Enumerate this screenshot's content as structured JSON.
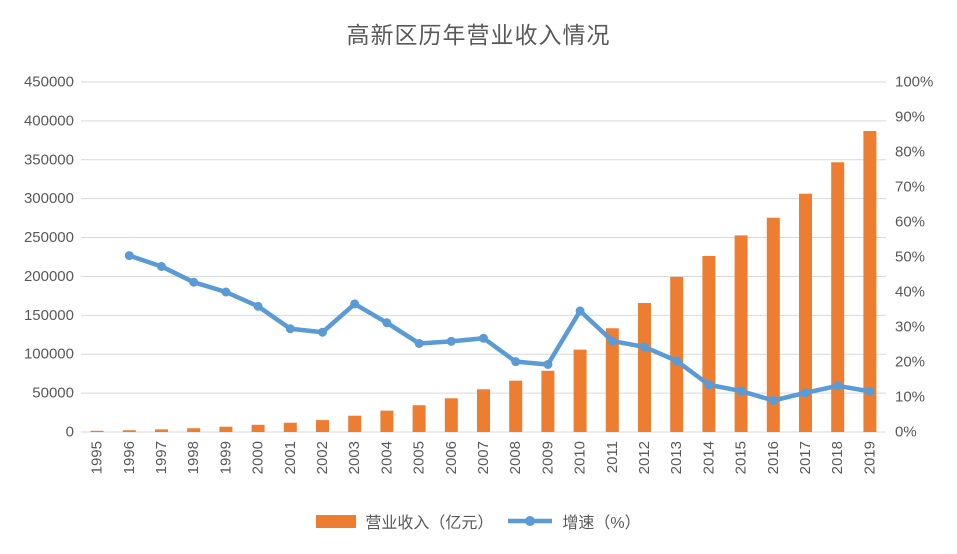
{
  "title": "高新区历年营业收入情况",
  "colors": {
    "bar": "#ED7D31",
    "line": "#5B9BD5",
    "grid": "#D9D9D9",
    "axis_text": "#595959",
    "title_text": "#595959",
    "background": "#FFFFFF"
  },
  "legend": {
    "position": "bottom",
    "items": [
      {
        "label": "营业收入（亿元）",
        "marker": "bar-swatch",
        "color": "#ED7D31"
      },
      {
        "label": "增速（%）",
        "marker": "line-dot",
        "color": "#5B9BD5"
      }
    ]
  },
  "chart_data": {
    "type": "combo-bar-line",
    "title": "高新区历年营业收入情况",
    "categories": [
      "1995",
      "1996",
      "1997",
      "1998",
      "1999",
      "2000",
      "2001",
      "2002",
      "2003",
      "2004",
      "2005",
      "2006",
      "2007",
      "2008",
      "2009",
      "2010",
      "2011",
      "2012",
      "2013",
      "2014",
      "2015",
      "2016",
      "2017",
      "2018",
      "2019"
    ],
    "series": [
      {
        "name": "营业收入（亿元）",
        "type": "bar",
        "axis": "left",
        "color": "#ED7D31",
        "values": [
          1529,
          2300,
          3388,
          4839,
          6775,
          9209,
          11928,
          15326,
          20939,
          27466,
          34416,
          43320,
          54925,
          65986,
          78707,
          105917,
          133408,
          165842,
          199430,
          226312,
          252748,
          275500,
          306400,
          346800,
          387000
        ]
      },
      {
        "name": "增速（%）",
        "type": "line",
        "axis": "right",
        "color": "#5B9BD5",
        "values": [
          null,
          50.4,
          47.3,
          42.8,
          40.0,
          35.9,
          29.5,
          28.5,
          36.6,
          31.2,
          25.3,
          25.9,
          26.8,
          20.1,
          19.3,
          34.6,
          26.0,
          24.3,
          20.3,
          13.5,
          11.7,
          9.0,
          11.2,
          13.2,
          11.6
        ]
      }
    ],
    "left_axis": {
      "min": 0,
      "max": 450000,
      "step": 50000,
      "tick_labels": [
        "0",
        "50000",
        "100000",
        "150000",
        "200000",
        "250000",
        "300000",
        "350000",
        "400000",
        "450000"
      ]
    },
    "right_axis": {
      "min": 0,
      "max": 100,
      "step": 10,
      "tick_labels": [
        "0%",
        "10%",
        "20%",
        "30%",
        "40%",
        "50%",
        "60%",
        "70%",
        "80%",
        "90%",
        "100%"
      ]
    },
    "grid": true,
    "legend_position": "bottom"
  }
}
